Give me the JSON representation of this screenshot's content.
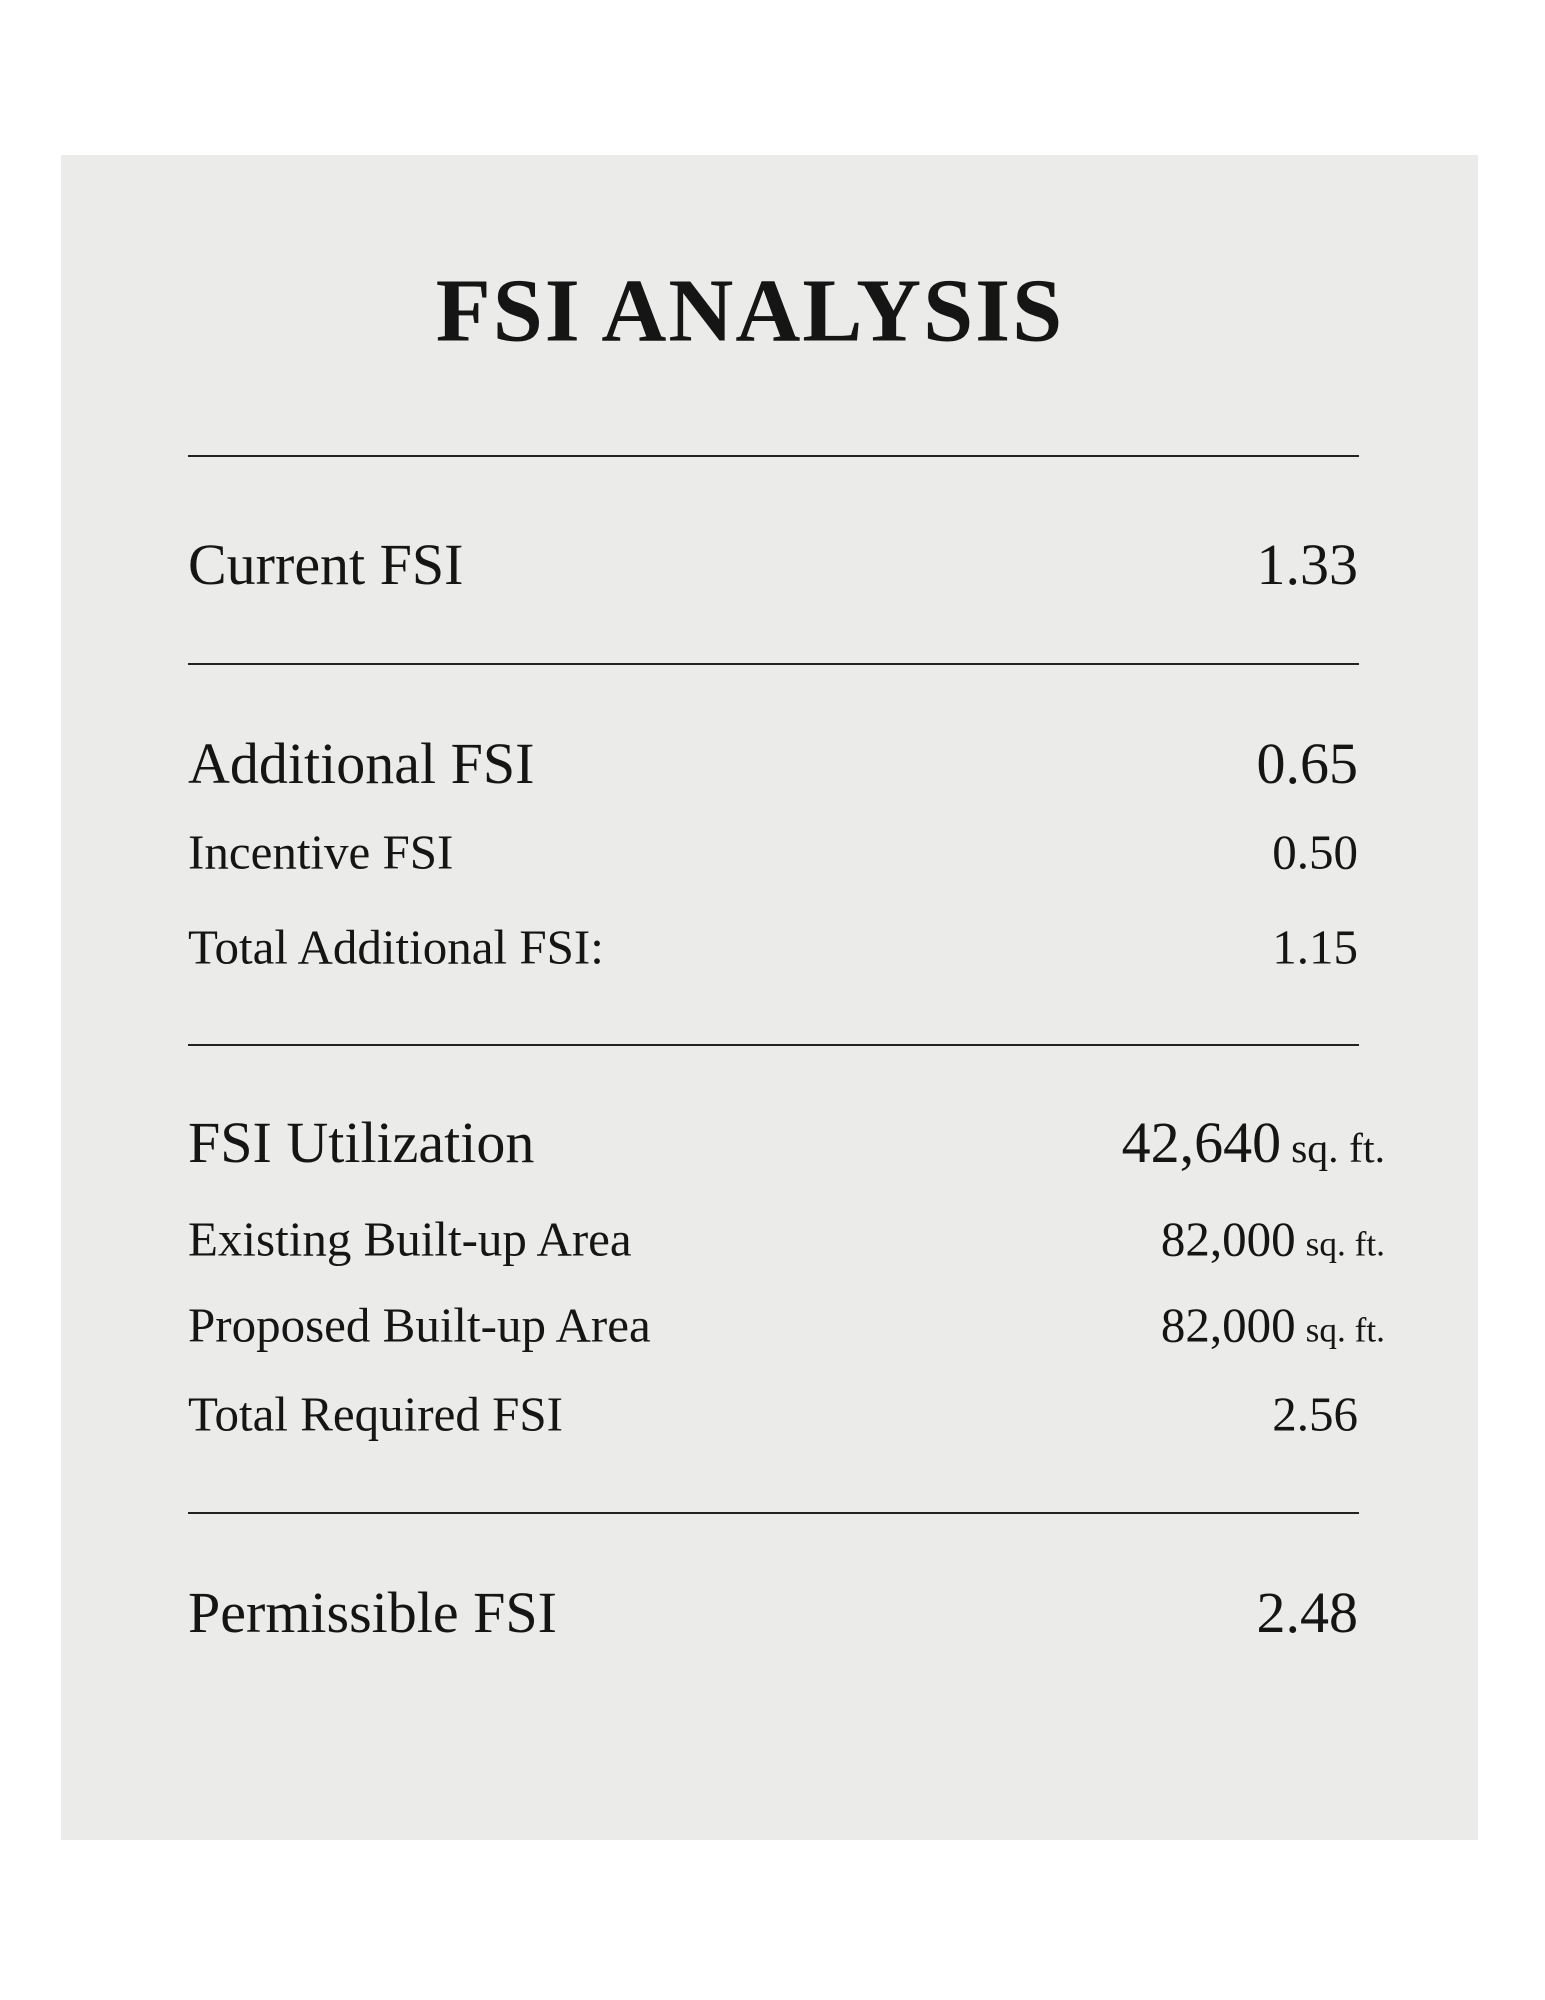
{
  "title": "FSI ANALYSIS",
  "sections": [
    {
      "rows": [
        {
          "label": "Current FSI",
          "value": "1.33"
        }
      ]
    },
    {
      "rows": [
        {
          "label": "Additional FSI",
          "value": "0.65"
        },
        {
          "label": "Incentive FSI",
          "value": "0.50"
        },
        {
          "label": "Total Additional FSI:",
          "value": "1.15"
        }
      ]
    },
    {
      "rows": [
        {
          "label": "FSI Utilization",
          "value": "42,640",
          "unit": "sq. ft."
        },
        {
          "label": "Existing Built-up Area",
          "value": "82,000",
          "unit": "sq. ft."
        },
        {
          "label": "Proposed Built-up Area",
          "value": "82,000",
          "unit": "sq. ft."
        },
        {
          "label": "Total Required FSI",
          "value": "2.56"
        }
      ]
    },
    {
      "rows": [
        {
          "label": "Permissible FSI",
          "value": "2.48"
        }
      ]
    }
  ]
}
